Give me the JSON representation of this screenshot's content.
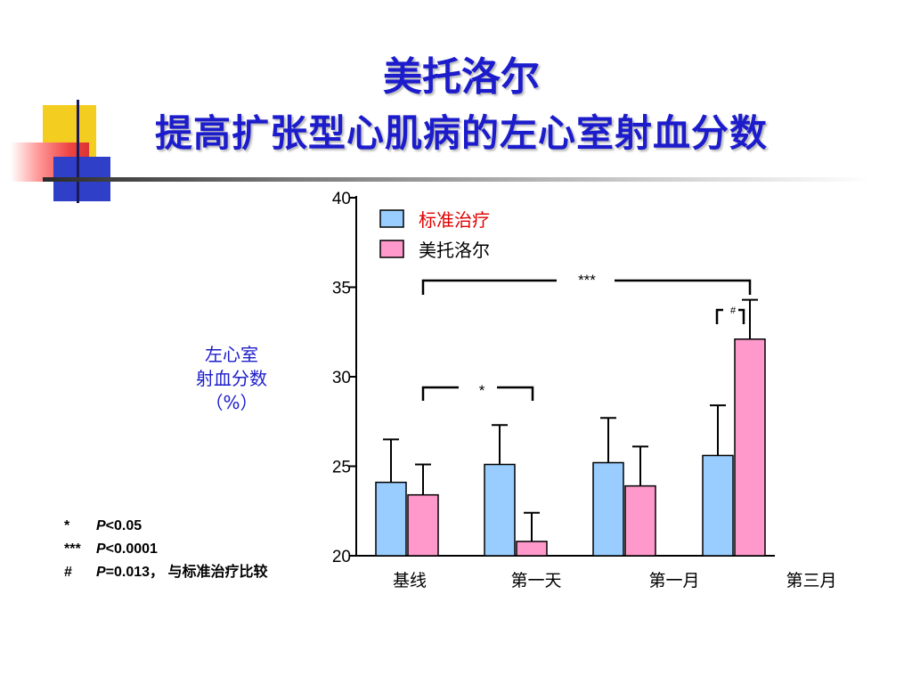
{
  "slide": {
    "title_line1": "美托洛尔",
    "title_line2": "提高扩张型心肌病的左心室射血分数"
  },
  "ylabel_lines": [
    "左心室",
    "射血分数",
    "（%）"
  ],
  "footnotes": [
    {
      "symbol": "*",
      "p": "P",
      "text": "<0.05"
    },
    {
      "symbol": "***",
      "p": "P",
      "text": "<0.0001"
    },
    {
      "symbol": "#",
      "p": "P",
      "text": "=0.013，  与标准治疗比较"
    }
  ],
  "colors": {
    "title": "#1c1ccc",
    "standard_bar": "#99ccff",
    "metoprolol_bar": "#ff99cc",
    "legend_standard_text": "#e00000",
    "legend_metoprolol_text": "#000000"
  },
  "chart_data": {
    "type": "bar",
    "categories": [
      "基线",
      "第一天",
      "第一月",
      "第三月"
    ],
    "ylim": [
      20,
      40
    ],
    "yticks": [
      "20",
      "25",
      "30",
      "35",
      "40"
    ],
    "ylabel": "左心室 射血分数 （%）",
    "legend_position": "top-left",
    "grid": false,
    "series": [
      {
        "name": "标准治疗",
        "color": "#99ccff",
        "values": [
          24.1,
          25.1,
          25.2,
          25.6
        ],
        "error_upper": [
          26.5,
          27.3,
          27.7,
          28.4
        ]
      },
      {
        "name": "美托洛尔",
        "color": "#ff99cc",
        "values": [
          23.4,
          20.8,
          23.9,
          32.1
        ],
        "error_upper": [
          25.1,
          22.4,
          26.1,
          34.3
        ]
      }
    ],
    "annotations": [
      {
        "label": "***",
        "from_category": 0,
        "to_category": 3
      },
      {
        "label": "#",
        "category": 3
      },
      {
        "label": "*",
        "from_category": 0,
        "to_category": 1
      }
    ]
  }
}
